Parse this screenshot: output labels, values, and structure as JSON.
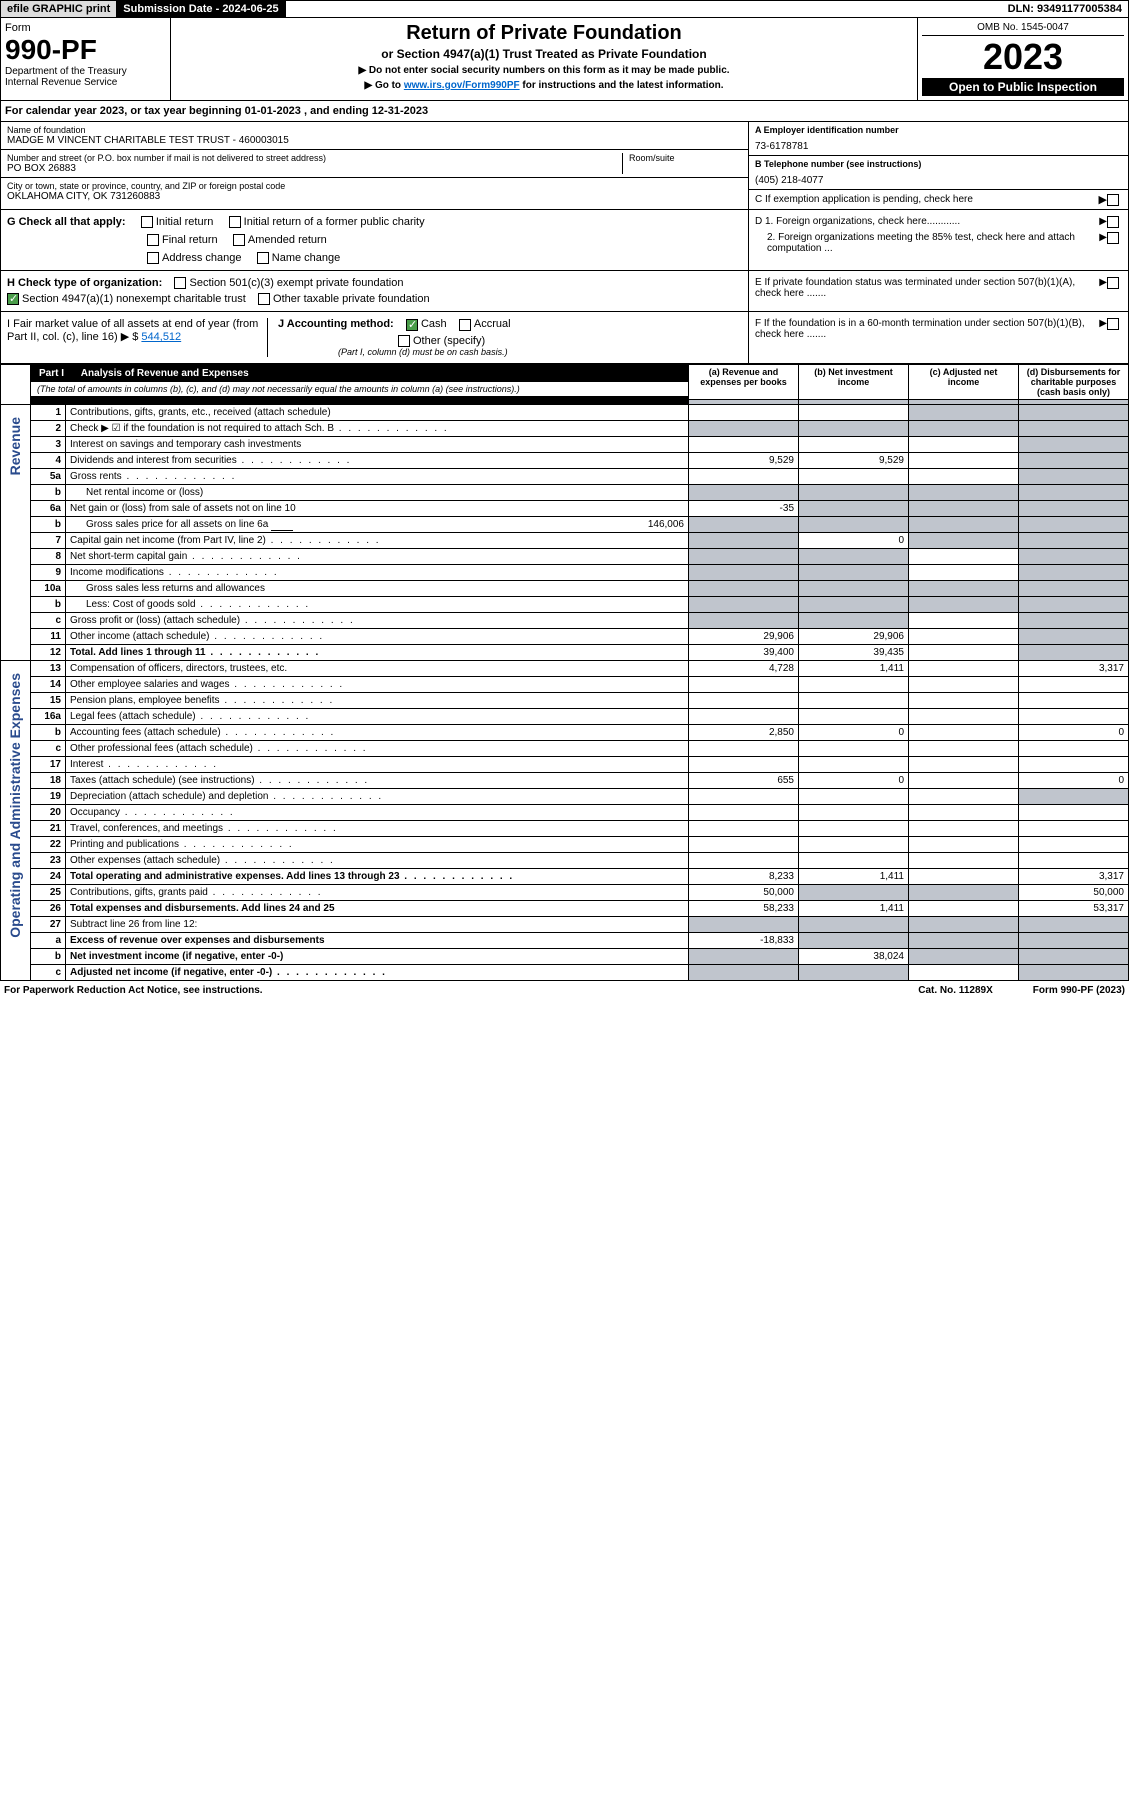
{
  "top": {
    "efile": "efile GRAPHIC print",
    "sub_date_label": "Submission Date - 2024-06-25",
    "dln": "DLN: 93491177005384"
  },
  "header": {
    "form_label": "Form",
    "form_num": "990-PF",
    "dept": "Department of the Treasury",
    "irs": "Internal Revenue Service",
    "title": "Return of Private Foundation",
    "subtitle": "or Section 4947(a)(1) Trust Treated as Private Foundation",
    "note1": "▶ Do not enter social security numbers on this form as it may be made public.",
    "note2_pre": "▶ Go to ",
    "note2_link": "www.irs.gov/Form990PF",
    "note2_post": " for instructions and the latest information.",
    "omb": "OMB No. 1545-0047",
    "year": "2023",
    "open": "Open to Public Inspection"
  },
  "cal_year": "For calendar year 2023, or tax year beginning 01-01-2023            , and ending 12-31-2023",
  "entity": {
    "name_label": "Name of foundation",
    "name": "MADGE M VINCENT CHARITABLE TEST TRUST - 460003015",
    "addr_label": "Number and street (or P.O. box number if mail is not delivered to street address)",
    "addr": "PO BOX 26883",
    "room_label": "Room/suite",
    "city_label": "City or town, state or province, country, and ZIP or foreign postal code",
    "city": "OKLAHOMA CITY, OK  731260883",
    "a_label": "A Employer identification number",
    "a_val": "73-6178781",
    "b_label": "B Telephone number (see instructions)",
    "b_val": "(405) 218-4077",
    "c_label": "C If exemption application is pending, check here"
  },
  "g": {
    "label": "G Check all that apply:",
    "initial": "Initial return",
    "initial_former": "Initial return of a former public charity",
    "final": "Final return",
    "amended": "Amended return",
    "addr_change": "Address change",
    "name_change": "Name change"
  },
  "h": {
    "label": "H Check type of organization:",
    "501c3": "Section 501(c)(3) exempt private foundation",
    "4947": "Section 4947(a)(1) nonexempt charitable trust",
    "other_tax": "Other taxable private foundation"
  },
  "i": {
    "label": "I Fair market value of all assets at end of year (from Part II, col. (c), line 16) ▶ $",
    "val": "544,512"
  },
  "j": {
    "label": "J Accounting method:",
    "cash": "Cash",
    "accrual": "Accrual",
    "other": "Other (specify)",
    "note": "(Part I, column (d) must be on cash basis.)"
  },
  "d": {
    "d1": "D 1. Foreign organizations, check here............",
    "d2": "2. Foreign organizations meeting the 85% test, check here and attach computation ...",
    "e": "E  If private foundation status was terminated under section 507(b)(1)(A), check here .......",
    "f": "F  If the foundation is in a 60-month termination under section 507(b)(1)(B), check here ......."
  },
  "part1": {
    "label": "Part I",
    "title": "Analysis of Revenue and Expenses",
    "note": "(The total of amounts in columns (b), (c), and (d) may not necessarily equal the amounts in column (a) (see instructions).)",
    "col_a": "(a) Revenue and expenses per books",
    "col_b": "(b) Net investment income",
    "col_c": "(c) Adjusted net income",
    "col_d": "(d) Disbursements for charitable purposes (cash basis only)"
  },
  "side": {
    "revenue": "Revenue",
    "expenses": "Operating and Administrative Expenses"
  },
  "rows": [
    {
      "n": "1",
      "d": "Contributions, gifts, grants, etc., received (attach schedule)",
      "a": "",
      "b": "",
      "c": "s",
      "dd": "s"
    },
    {
      "n": "2",
      "d": "Check ▶ ☑ if the foundation is not required to attach Sch. B",
      "a": "s",
      "b": "s",
      "c": "s",
      "dd": "s",
      "dots": true
    },
    {
      "n": "3",
      "d": "Interest on savings and temporary cash investments",
      "a": "",
      "b": "",
      "c": "",
      "dd": "s"
    },
    {
      "n": "4",
      "d": "Dividends and interest from securities",
      "a": "9,529",
      "b": "9,529",
      "c": "",
      "dd": "s",
      "dots": true
    },
    {
      "n": "5a",
      "d": "Gross rents",
      "a": "",
      "b": "",
      "c": "",
      "dd": "s",
      "dots": true
    },
    {
      "n": "b",
      "d": "Net rental income or (loss)",
      "a": "s",
      "b": "s",
      "c": "s",
      "dd": "s",
      "inset": true
    },
    {
      "n": "6a",
      "d": "Net gain or (loss) from sale of assets not on line 10",
      "a": "-35",
      "b": "s",
      "c": "s",
      "dd": "s"
    },
    {
      "n": "b",
      "d": "Gross sales price for all assets on line 6a",
      "a": "s",
      "b": "s",
      "c": "s",
      "dd": "s",
      "inset": true,
      "inline_val": "146,006"
    },
    {
      "n": "7",
      "d": "Capital gain net income (from Part IV, line 2)",
      "a": "s",
      "b": "0",
      "c": "s",
      "dd": "s",
      "dots": true
    },
    {
      "n": "8",
      "d": "Net short-term capital gain",
      "a": "s",
      "b": "s",
      "c": "",
      "dd": "s",
      "dots": true
    },
    {
      "n": "9",
      "d": "Income modifications",
      "a": "s",
      "b": "s",
      "c": "",
      "dd": "s",
      "dots": true
    },
    {
      "n": "10a",
      "d": "Gross sales less returns and allowances",
      "a": "s",
      "b": "s",
      "c": "s",
      "dd": "s",
      "inset": true
    },
    {
      "n": "b",
      "d": "Less: Cost of goods sold",
      "a": "s",
      "b": "s",
      "c": "s",
      "dd": "s",
      "inset": true,
      "dots": true
    },
    {
      "n": "c",
      "d": "Gross profit or (loss) (attach schedule)",
      "a": "s",
      "b": "s",
      "c": "",
      "dd": "s",
      "dots": true
    },
    {
      "n": "11",
      "d": "Other income (attach schedule)",
      "a": "29,906",
      "b": "29,906",
      "c": "",
      "dd": "s",
      "dots": true
    },
    {
      "n": "12",
      "d": "Total. Add lines 1 through 11",
      "a": "39,400",
      "b": "39,435",
      "c": "",
      "dd": "s",
      "bold": true,
      "dots": true
    },
    {
      "n": "13",
      "d": "Compensation of officers, directors, trustees, etc.",
      "a": "4,728",
      "b": "1,411",
      "c": "",
      "dd": "3,317"
    },
    {
      "n": "14",
      "d": "Other employee salaries and wages",
      "a": "",
      "b": "",
      "c": "",
      "dd": "",
      "dots": true
    },
    {
      "n": "15",
      "d": "Pension plans, employee benefits",
      "a": "",
      "b": "",
      "c": "",
      "dd": "",
      "dots": true
    },
    {
      "n": "16a",
      "d": "Legal fees (attach schedule)",
      "a": "",
      "b": "",
      "c": "",
      "dd": "",
      "dots": true
    },
    {
      "n": "b",
      "d": "Accounting fees (attach schedule)",
      "a": "2,850",
      "b": "0",
      "c": "",
      "dd": "0",
      "dots": true
    },
    {
      "n": "c",
      "d": "Other professional fees (attach schedule)",
      "a": "",
      "b": "",
      "c": "",
      "dd": "",
      "dots": true
    },
    {
      "n": "17",
      "d": "Interest",
      "a": "",
      "b": "",
      "c": "",
      "dd": "",
      "dots": true
    },
    {
      "n": "18",
      "d": "Taxes (attach schedule) (see instructions)",
      "a": "655",
      "b": "0",
      "c": "",
      "dd": "0",
      "dots": true
    },
    {
      "n": "19",
      "d": "Depreciation (attach schedule) and depletion",
      "a": "",
      "b": "",
      "c": "",
      "dd": "s",
      "dots": true
    },
    {
      "n": "20",
      "d": "Occupancy",
      "a": "",
      "b": "",
      "c": "",
      "dd": "",
      "dots": true
    },
    {
      "n": "21",
      "d": "Travel, conferences, and meetings",
      "a": "",
      "b": "",
      "c": "",
      "dd": "",
      "dots": true
    },
    {
      "n": "22",
      "d": "Printing and publications",
      "a": "",
      "b": "",
      "c": "",
      "dd": "",
      "dots": true
    },
    {
      "n": "23",
      "d": "Other expenses (attach schedule)",
      "a": "",
      "b": "",
      "c": "",
      "dd": "",
      "dots": true
    },
    {
      "n": "24",
      "d": "Total operating and administrative expenses. Add lines 13 through 23",
      "a": "8,233",
      "b": "1,411",
      "c": "",
      "dd": "3,317",
      "bold": true,
      "dots": true
    },
    {
      "n": "25",
      "d": "Contributions, gifts, grants paid",
      "a": "50,000",
      "b": "s",
      "c": "s",
      "dd": "50,000",
      "dots": true
    },
    {
      "n": "26",
      "d": "Total expenses and disbursements. Add lines 24 and 25",
      "a": "58,233",
      "b": "1,411",
      "c": "",
      "dd": "53,317",
      "bold": true
    },
    {
      "n": "27",
      "d": "Subtract line 26 from line 12:",
      "a": "s",
      "b": "s",
      "c": "s",
      "dd": "s"
    },
    {
      "n": "a",
      "d": "Excess of revenue over expenses and disbursements",
      "a": "-18,833",
      "b": "s",
      "c": "s",
      "dd": "s",
      "bold": true
    },
    {
      "n": "b",
      "d": "Net investment income (if negative, enter -0-)",
      "a": "s",
      "b": "38,024",
      "c": "s",
      "dd": "s",
      "bold": true
    },
    {
      "n": "c",
      "d": "Adjusted net income (if negative, enter -0-)",
      "a": "s",
      "b": "s",
      "c": "",
      "dd": "s",
      "bold": true,
      "dots": true
    }
  ],
  "footer": {
    "left": "For Paperwork Reduction Act Notice, see instructions.",
    "mid": "Cat. No. 11289X",
    "right": "Form 990-PF (2023)"
  },
  "colors": {
    "side_text": "#2a4b8d",
    "shade": "#c0c5cd",
    "link": "#0066cc",
    "check_green": "#4a9d4a"
  }
}
